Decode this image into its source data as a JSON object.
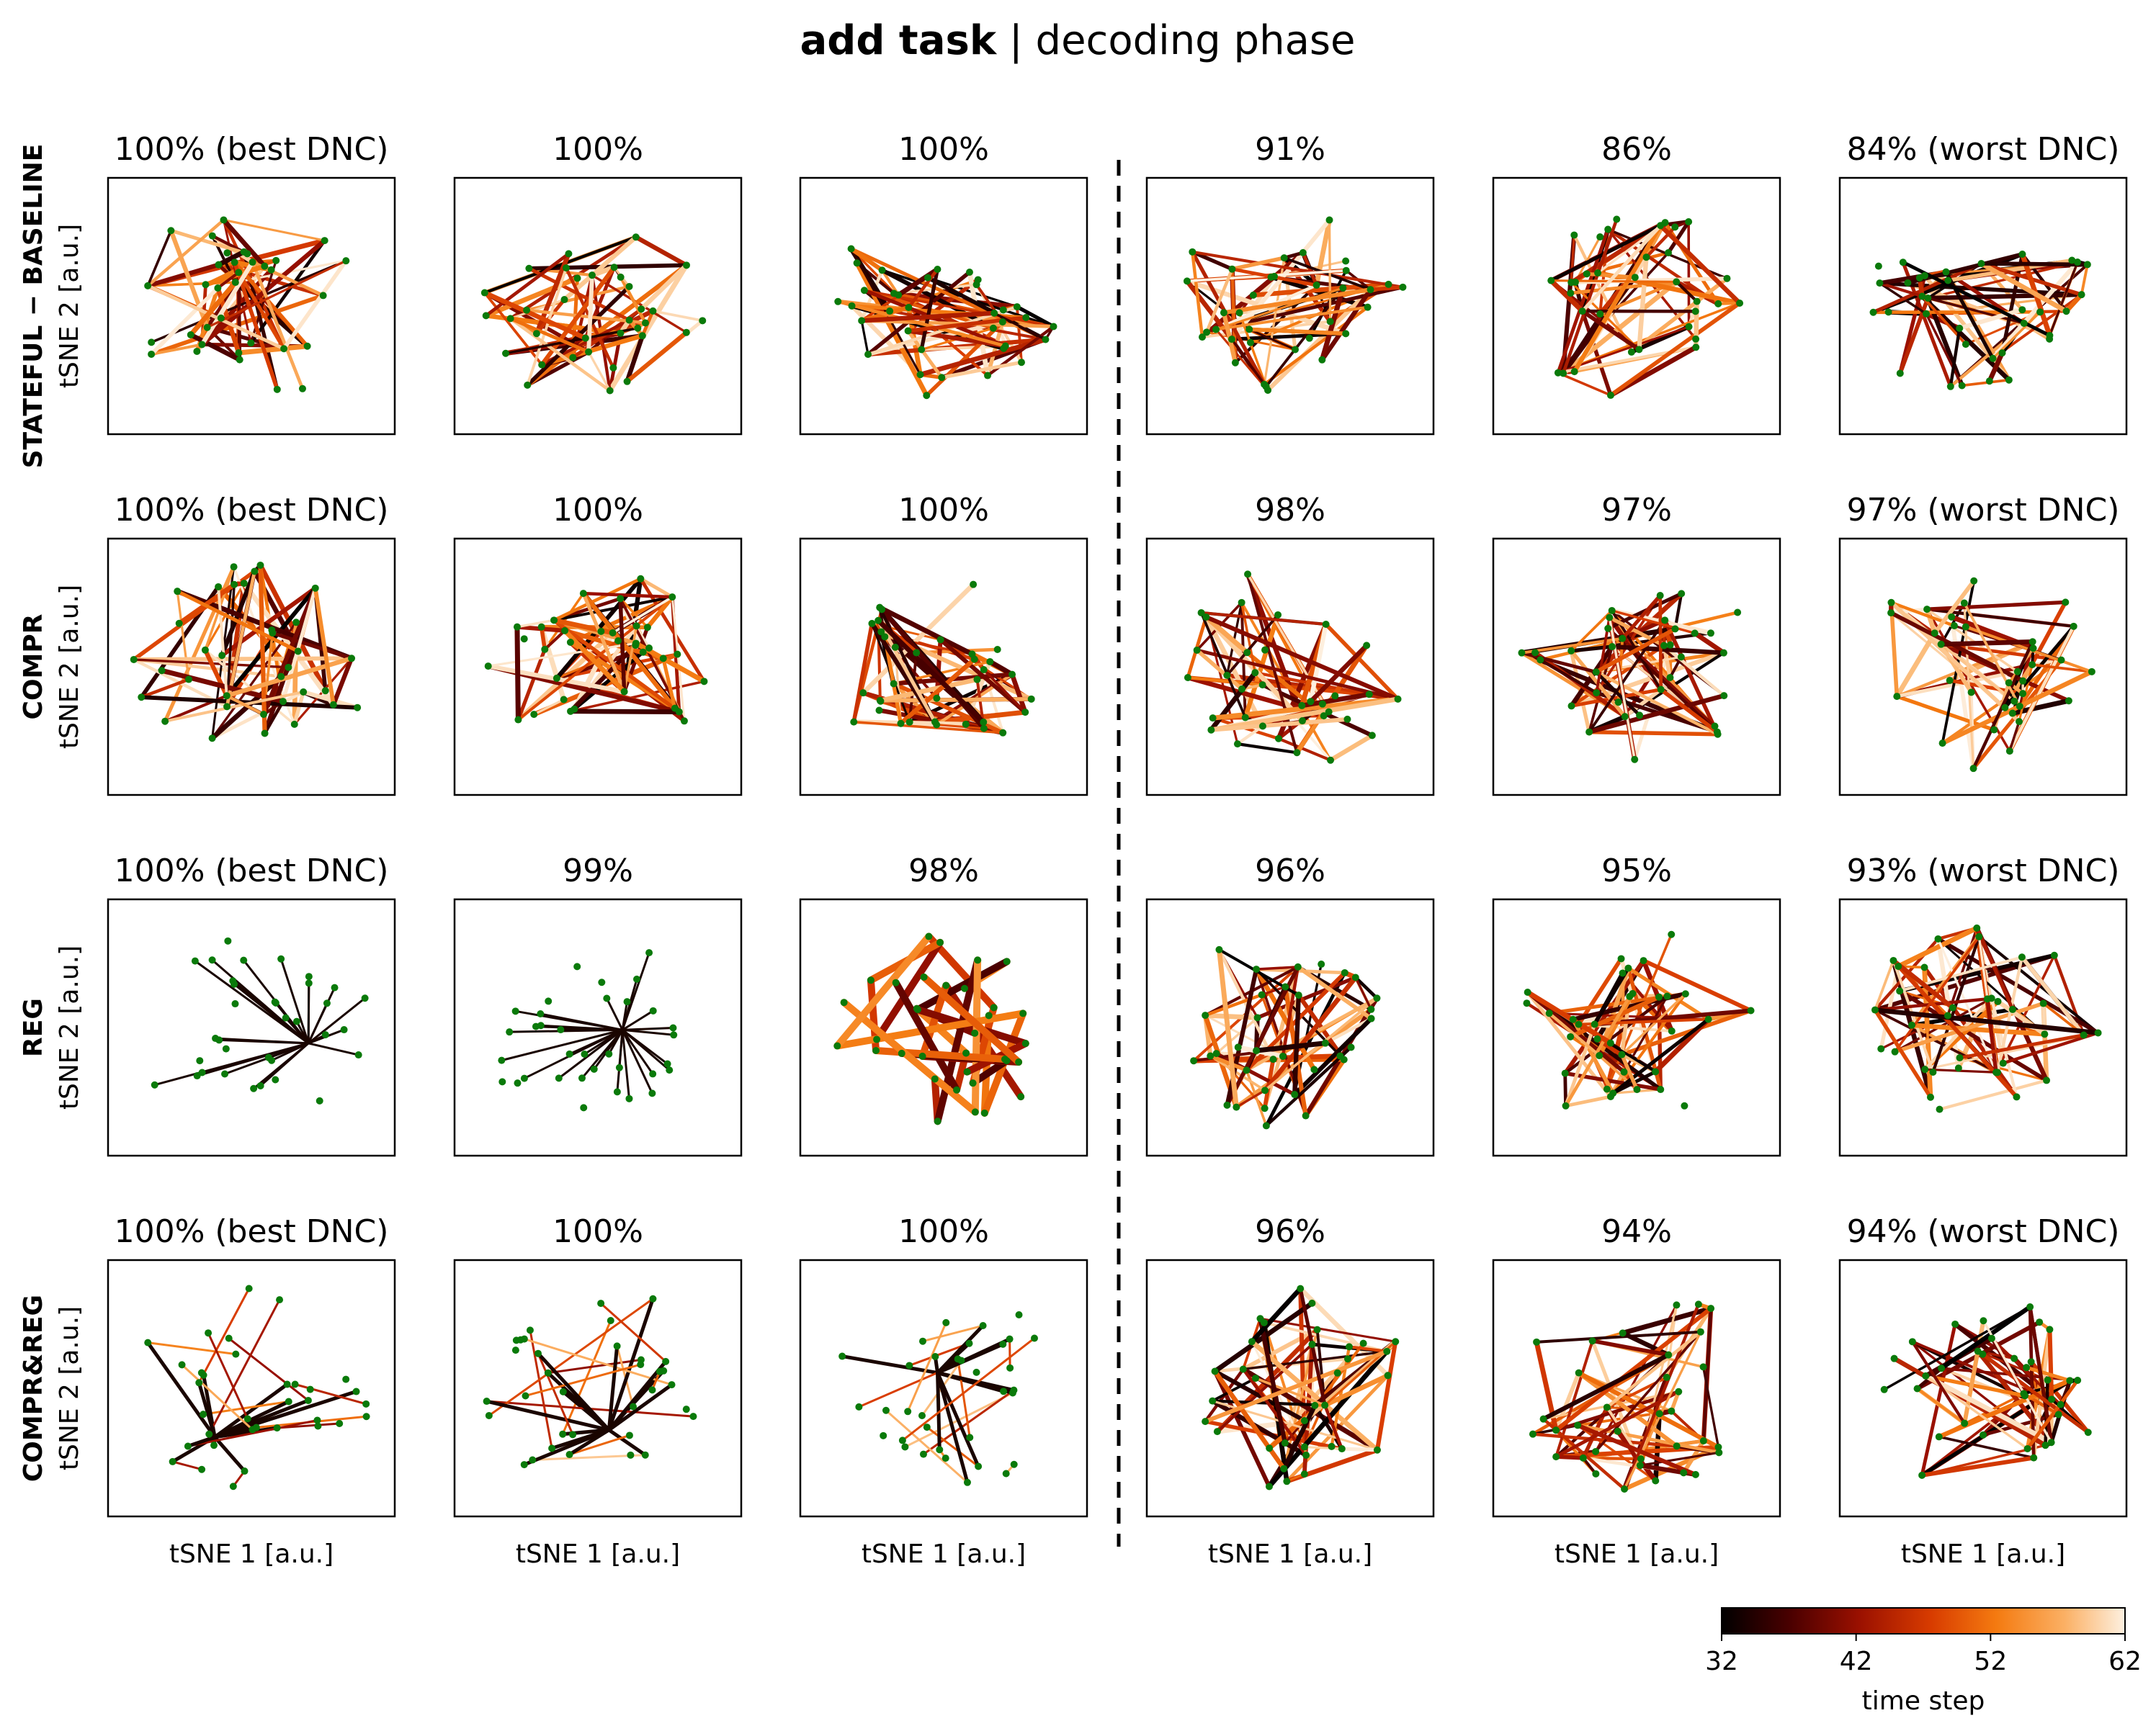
{
  "figure": {
    "title_bold": "add task",
    "title_rest": " | decoding phase",
    "x_axis_label": "tSNE 1 [a.u.]",
    "y_axis_label": "tSNE 2 [a.u.]"
  },
  "rows": [
    {
      "name": "STATEFUL − BASELINE",
      "panels": [
        "100% (best DNC)",
        "100%",
        "100%",
        "91%",
        "86%",
        "84% (worst DNC)"
      ]
    },
    {
      "name": "COMPR",
      "panels": [
        "100% (best DNC)",
        "100%",
        "100%",
        "98%",
        "97%",
        "97% (worst DNC)"
      ]
    },
    {
      "name": "REG",
      "panels": [
        "100% (best DNC)",
        "99%",
        "98%",
        "96%",
        "95%",
        "93% (worst DNC)"
      ]
    },
    {
      "name": "COMPR&REG",
      "panels": [
        "100% (best DNC)",
        "100%",
        "100%",
        "96%",
        "94%",
        "94% (worst DNC)"
      ]
    }
  ],
  "colorbar": {
    "label": "time step",
    "ticks": [
      "32",
      "42",
      "52",
      "62"
    ],
    "min": 32,
    "max": 62,
    "colormap": "gist_heat (black → red → orange → pale)"
  },
  "colors": {
    "points": "#0a7a0a",
    "cmap_stops": [
      "#000000",
      "#4a0000",
      "#9a1000",
      "#d83c00",
      "#f47a10",
      "#fbb064",
      "#fdf0e0"
    ]
  },
  "chart_data": {
    "type": "scatter",
    "description_type": "grid of 24 tSNE trajectory panels (4 rows x 6 columns), lines colored by time step 32-62",
    "xlabel": "tSNE 1 [a.u.]",
    "ylabel": "tSNE 2 [a.u.]",
    "separator": "dashed vertical line between column 3 and column 4",
    "panels": [
      {
        "row": "STATEFUL − BASELINE",
        "titles": [
          "100% (best DNC)",
          "100%",
          "100%",
          "91%",
          "86%",
          "84% (worst DNC)"
        ]
      },
      {
        "row": "COMPR",
        "titles": [
          "100% (best DNC)",
          "100%",
          "100%",
          "98%",
          "97%",
          "97% (worst DNC)"
        ]
      },
      {
        "row": "REG",
        "titles": [
          "100% (best DNC)",
          "99%",
          "98%",
          "96%",
          "95%",
          "93% (worst DNC)"
        ]
      },
      {
        "row": "COMPR&REG",
        "titles": [
          "100% (best DNC)",
          "100%",
          "100%",
          "96%",
          "94%",
          "94% (worst DNC)"
        ]
      }
    ],
    "colorbar": {
      "label": "time step",
      "range": [
        32,
        62
      ],
      "ticks": [
        32,
        42,
        52,
        62
      ]
    }
  }
}
